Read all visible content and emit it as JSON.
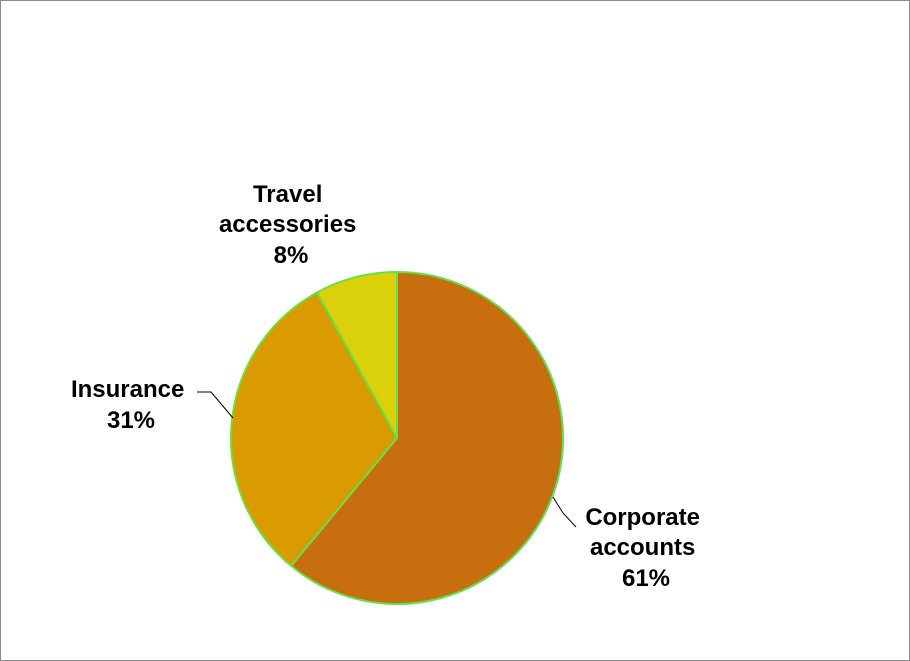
{
  "chart_data": {
    "type": "pie",
    "title": "",
    "slices": [
      {
        "label": "Corporate accounts",
        "label_lines": [
          "Corporate",
          "accounts"
        ],
        "value": 61,
        "value_label": "61%",
        "color": "#c76e0e"
      },
      {
        "label": "Insurance",
        "label_lines": [
          "Insurance"
        ],
        "value": 31,
        "value_label": "31%",
        "color": "#d99b00"
      },
      {
        "label": "Travel accessories",
        "label_lines": [
          "Travel",
          "accessories"
        ],
        "value": 8,
        "value_label": "8%",
        "color": "#dbd10a"
      }
    ],
    "slice_border_color": "#66e04a",
    "legend": "none",
    "data_labels": "outside"
  }
}
